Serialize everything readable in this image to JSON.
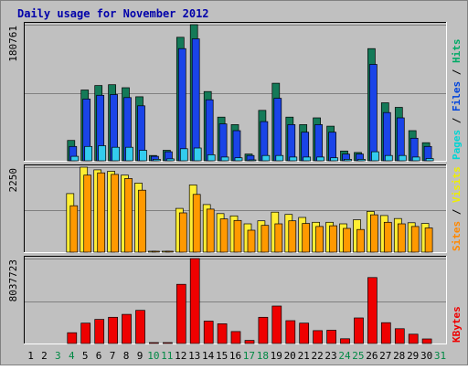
{
  "chart_data": {
    "type": "bar",
    "title": "Daily usage for November 2012",
    "days": [
      "1",
      "2",
      "3",
      "4",
      "5",
      "6",
      "7",
      "8",
      "9",
      "10",
      "11",
      "12",
      "13",
      "14",
      "15",
      "16",
      "17",
      "18",
      "19",
      "20",
      "21",
      "22",
      "23",
      "24",
      "25",
      "26",
      "27",
      "28",
      "29",
      "30",
      "31"
    ],
    "weekend_days": [
      "3",
      "4",
      "10",
      "11",
      "17",
      "18",
      "24",
      "25",
      "31"
    ],
    "panels": [
      {
        "id": "hits",
        "ymax_label": "180761",
        "ymax": 180761,
        "side_labels": [
          {
            "text": "Pages",
            "color": "#00d4d4"
          },
          {
            "text": " / ",
            "color": "#000000"
          },
          {
            "text": "Files",
            "color": "#0044dd"
          },
          {
            "text": " / ",
            "color": "#000000"
          },
          {
            "text": "Hits",
            "color": "#00aa66"
          }
        ],
        "series": [
          {
            "name": "Hits",
            "color": "#147a58",
            "values": [
              0,
              0,
              0,
              27000,
              94000,
              100000,
              101000,
              97000,
              85000,
              7000,
              14000,
              164000,
              180761,
              92000,
              58000,
              48000,
              9000,
              67000,
              103000,
              58000,
              48000,
              57000,
              46000,
              13000,
              11000,
              149000,
              77000,
              71000,
              40000,
              24000,
              0
            ]
          },
          {
            "name": "Files",
            "color": "#1a44e8",
            "values": [
              0,
              0,
              0,
              19000,
              82000,
              87000,
              88000,
              84000,
              73000,
              6000,
              12000,
              149000,
              162000,
              81000,
              49000,
              40000,
              7000,
              52000,
              83000,
              48000,
              38000,
              48000,
              38000,
              9000,
              9000,
              128000,
              64000,
              57000,
              30000,
              19000,
              0
            ]
          },
          {
            "name": "Pages",
            "color": "#33ccee",
            "values": [
              0,
              0,
              0,
              6000,
              19000,
              20000,
              18000,
              18000,
              14000,
              2000,
              2500,
              16000,
              17000,
              8000,
              5000,
              4000,
              1000,
              7000,
              7000,
              5000,
              5000,
              5000,
              4000,
              2000,
              2000,
              12000,
              7000,
              7000,
              5000,
              3000,
              0
            ]
          }
        ]
      },
      {
        "id": "visits",
        "ymax_label": "2250",
        "ymax": 2250,
        "side_labels": [
          {
            "text": "Sites",
            "color": "#ff8800"
          },
          {
            "text": " / ",
            "color": "#000000"
          },
          {
            "text": "Visits",
            "color": "#eeee00"
          }
        ],
        "series": [
          {
            "name": "Visits",
            "color": "#ffee33",
            "values": [
              0,
              0,
              0,
              1550,
              2250,
              2180,
              2140,
              2040,
              1830,
              10,
              10,
              1160,
              1780,
              1260,
              1020,
              960,
              750,
              830,
              1060,
              1000,
              920,
              790,
              790,
              750,
              860,
              1080,
              970,
              890,
              780,
              760,
              0
            ]
          },
          {
            "name": "Sites",
            "color": "#ff9900",
            "values": [
              0,
              0,
              0,
              1230,
              2040,
              2100,
              2060,
              1950,
              1640,
              10,
              10,
              1040,
              1530,
              1140,
              880,
              840,
              580,
              710,
              750,
              830,
              760,
              680,
              700,
              630,
              600,
              990,
              790,
              750,
              680,
              640,
              0
            ]
          }
        ]
      },
      {
        "id": "kbytes",
        "ymax_label": "8037723",
        "ymax": 8037723,
        "side_labels": [
          {
            "text": "KBytes",
            "color": "#ee0000"
          }
        ],
        "series": [
          {
            "name": "KBytes",
            "color": "#ee0000",
            "values": [
              0,
              0,
              0,
              1020000,
              1930000,
              2280000,
              2480000,
              2760000,
              3140000,
              50000,
              50000,
              5600000,
              8037723,
              2120000,
              1870000,
              1130000,
              290000,
              2480000,
              3540000,
              2160000,
              1930000,
              1220000,
              1250000,
              450000,
              2420000,
              6240000,
              1970000,
              1400000,
              880000,
              430000,
              0
            ]
          }
        ]
      }
    ]
  }
}
